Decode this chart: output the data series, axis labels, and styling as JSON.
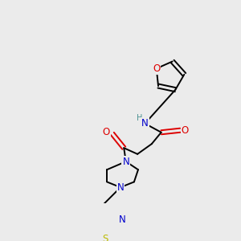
{
  "background_color": "#ebebeb",
  "fig_size": [
    3.0,
    3.0
  ],
  "dpi": 100,
  "atom_colors": {
    "C": "#000000",
    "N": "#0000cc",
    "O": "#dd0000",
    "S": "#bbbb00",
    "H": "#4a9090"
  },
  "bond_color": "#000000",
  "bond_width": 1.4,
  "font_size_atom": 7.5
}
